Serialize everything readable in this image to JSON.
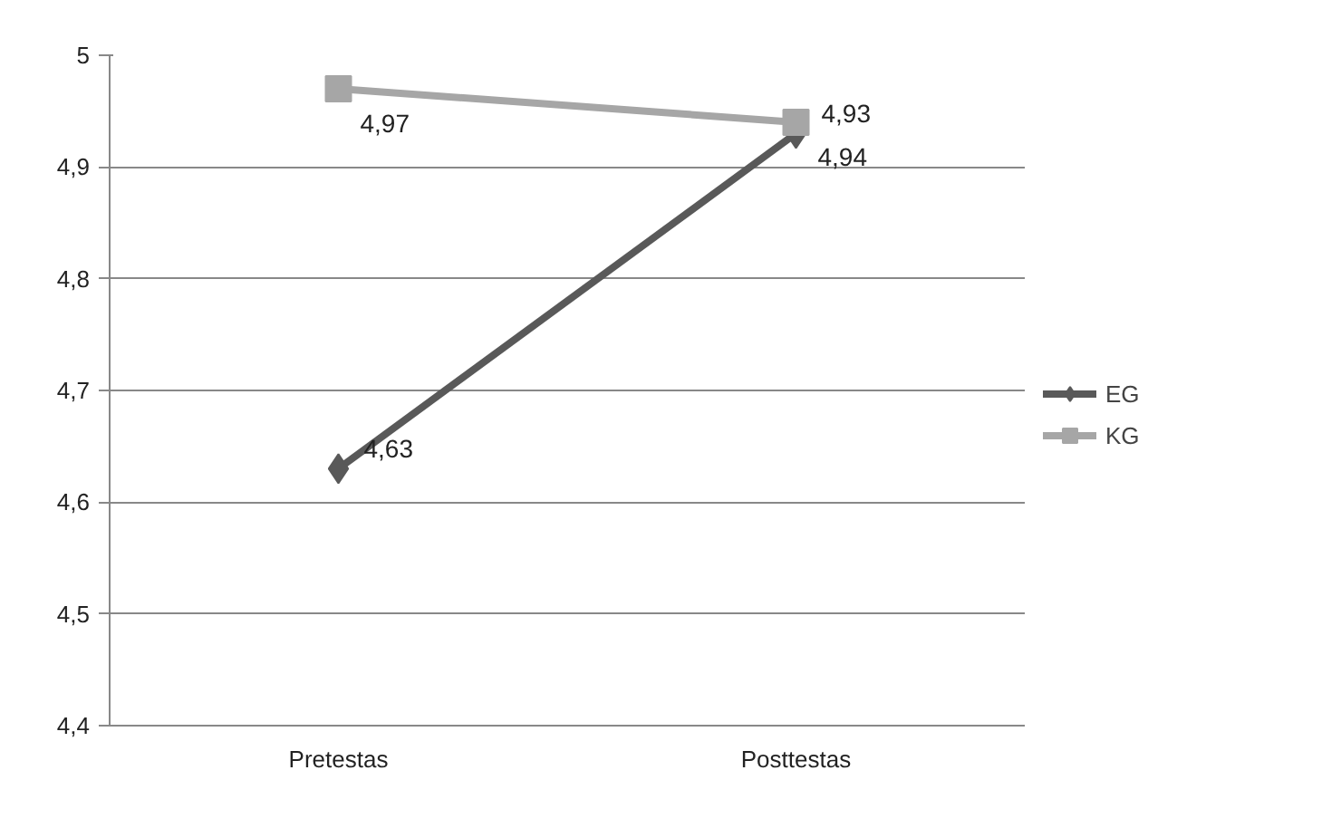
{
  "chart_data": {
    "type": "line",
    "categories": [
      "Pretestas",
      "Posttestas"
    ],
    "series": [
      {
        "name": "EG",
        "color": "#595959",
        "values": [
          4.63,
          4.93
        ],
        "value_labels": [
          "4,63",
          "4,93"
        ],
        "marker": "diamond"
      },
      {
        "name": "KG",
        "color": "#a6a6a6",
        "values": [
          4.97,
          4.94
        ],
        "value_labels": [
          "4,97",
          "4,94"
        ],
        "marker": "square"
      }
    ],
    "ylim": [
      4.4,
      5
    ],
    "yticks": [
      {
        "value": 4.4,
        "label": "4,4"
      },
      {
        "value": 4.5,
        "label": "4,5"
      },
      {
        "value": 4.6,
        "label": "4,6"
      },
      {
        "value": 4.7,
        "label": "4,7"
      },
      {
        "value": 4.8,
        "label": "4,8"
      },
      {
        "value": 4.9,
        "label": "4,9"
      },
      5
    ],
    "grid": "y",
    "legend": "right",
    "line_style": "solid"
  }
}
